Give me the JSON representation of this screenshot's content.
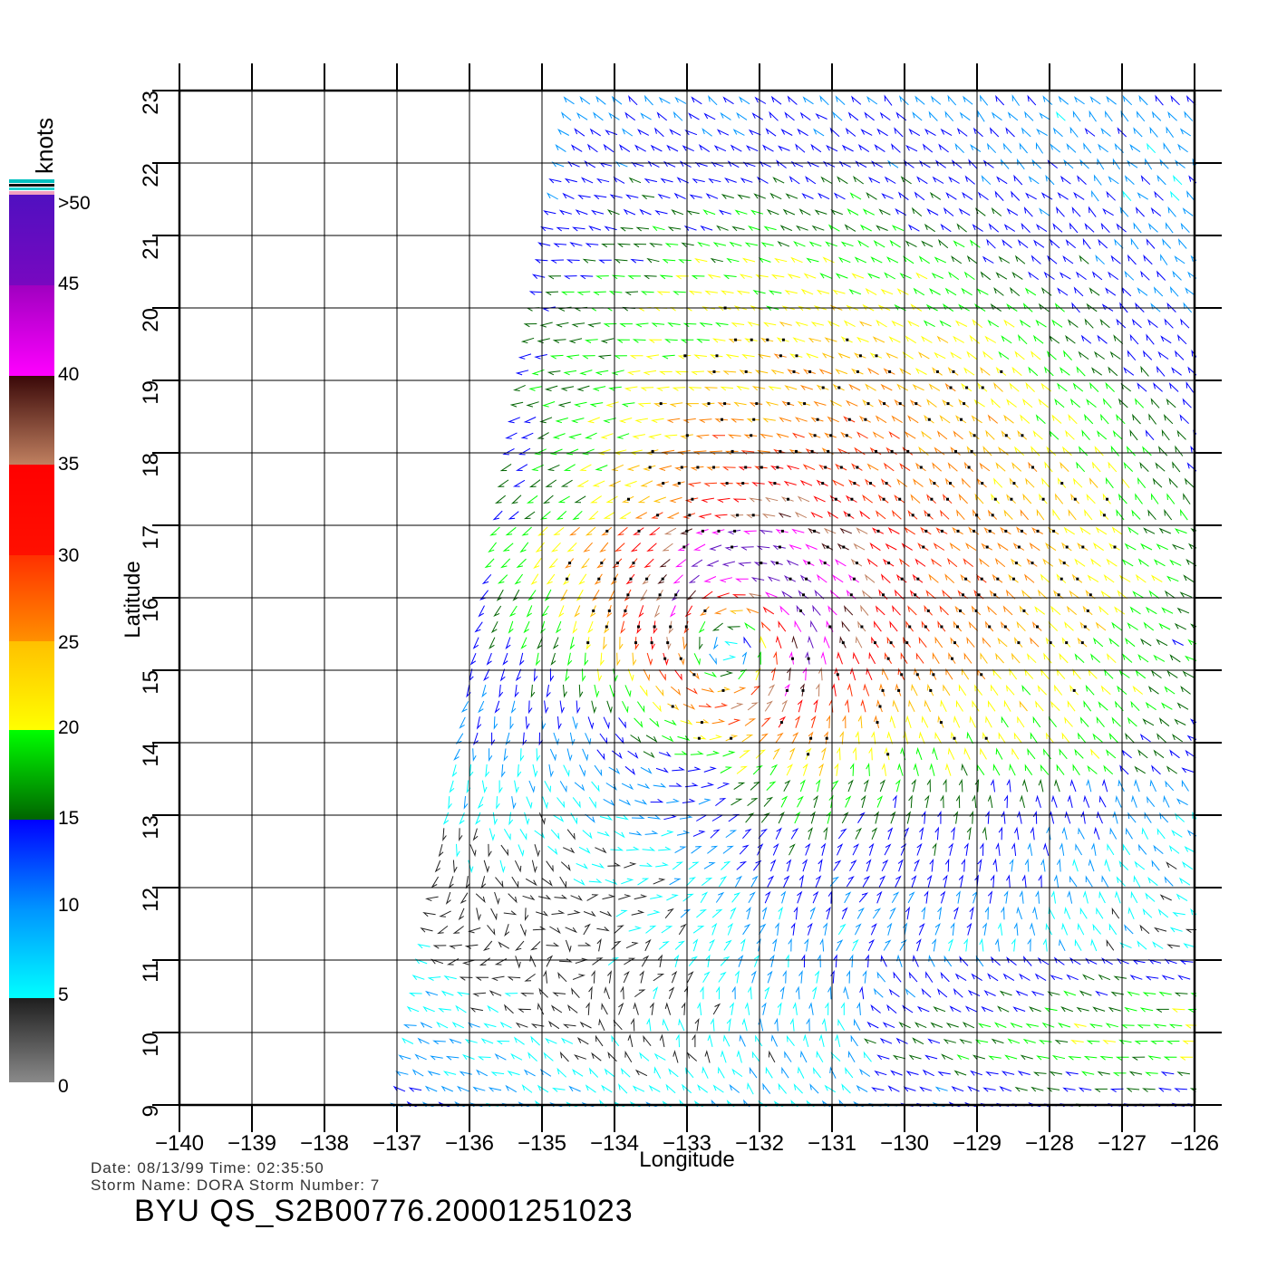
{
  "map": {
    "x_axis_label": "Longitude",
    "y_axis_label": "Latitude",
    "lon_range": [
      -140,
      -126
    ],
    "lat_range": [
      9,
      23
    ],
    "lon_ticks": [
      "−140",
      "−139",
      "−138",
      "−137",
      "−136",
      "−135",
      "−134",
      "−133",
      "−132",
      "−131",
      "−130",
      "−129",
      "−128",
      "−127",
      "−126"
    ],
    "lat_ticks": [
      "9",
      "10",
      "11",
      "12",
      "13",
      "14",
      "15",
      "16",
      "17",
      "18",
      "19",
      "20",
      "21",
      "22",
      "23"
    ],
    "storm_center": {
      "lon": -132.3,
      "lat": 15.5
    },
    "swath_edge": {
      "west_lon_at_lat9": -137.0,
      "west_lon_at_lat23": -134.6,
      "east_lon": -126.0
    },
    "grid": true
  },
  "colorbar": {
    "title": "knots",
    "labels": [
      ">50",
      "45",
      "40",
      "35",
      "30",
      "25",
      "20",
      "15",
      "10",
      "5",
      "0"
    ],
    "colors": {
      "gray": "#808080",
      "black": "#222222",
      "cyan": "#00ffff",
      "light_blue": "#0096ff",
      "blue": "#0000ff",
      "dark_green": "#006400",
      "green": "#00ff00",
      "yellow": "#ffff00",
      "gold": "#ffc000",
      "orange": "#ff8000",
      "red_orange": "#ff3000",
      "red": "#ff0000",
      "tan": "#c08060",
      "dark_brown": "#4a1010",
      "magenta": "#ff00ff",
      "purple": "#6010c0",
      "pink": "#f4a0c0",
      "teal": "#00c0c0"
    }
  },
  "info": {
    "date_line": "Date: 08/13/99   Time: 02:35:50",
    "storm_line": "Storm  Name:  DORA    Storm  Number:  7",
    "product_title": "BYU  QS_S2B00776.20001251023"
  }
}
